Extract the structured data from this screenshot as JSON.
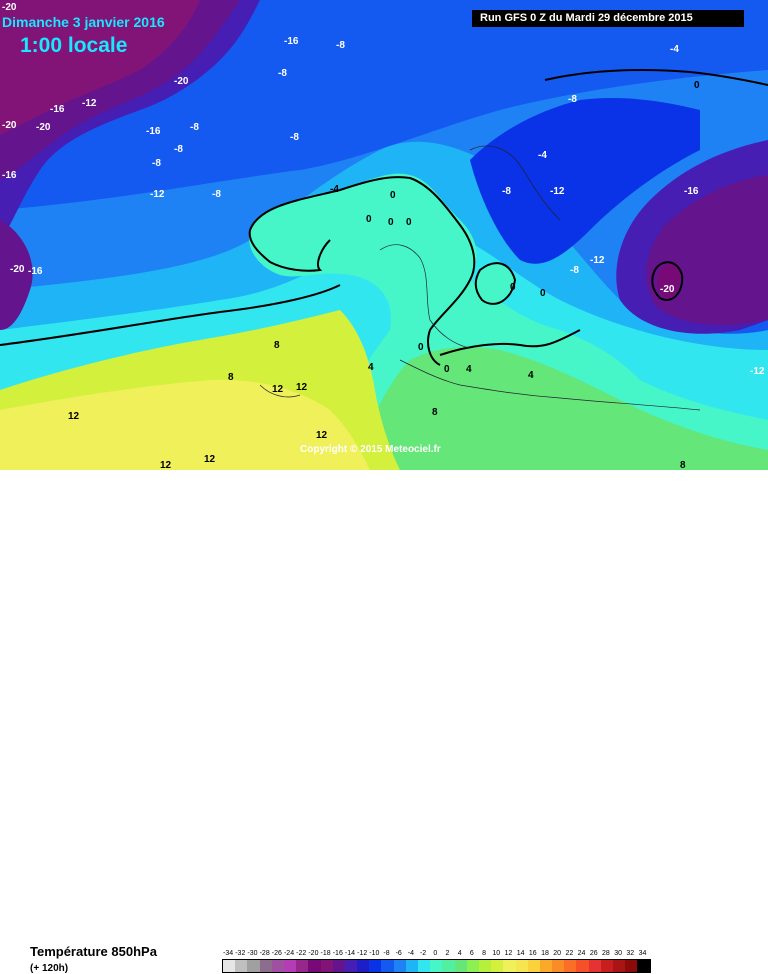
{
  "header": {
    "date": "Dimanche 3 janvier 2016",
    "time": "1:00 locale",
    "run": "Run GFS 0 Z du Mardi 29 décembre 2015"
  },
  "map": {
    "copyright": "Copyright © 2015 Meteociel.fr",
    "labels": [
      {
        "text": "-20"
      },
      {
        "text": "-16"
      },
      {
        "text": "-8"
      },
      {
        "text": "-8"
      },
      {
        "text": "-20"
      },
      {
        "text": "-16"
      },
      {
        "text": "-12"
      },
      {
        "text": "-20"
      },
      {
        "text": "-20"
      },
      {
        "text": "-16"
      },
      {
        "text": "-8"
      },
      {
        "text": "-8"
      },
      {
        "text": "-8"
      },
      {
        "text": "-8"
      },
      {
        "text": "-16"
      },
      {
        "text": "-12"
      },
      {
        "text": "-8"
      },
      {
        "text": "-4"
      },
      {
        "text": "0"
      },
      {
        "text": "0"
      },
      {
        "text": "0"
      },
      {
        "text": "-20"
      },
      {
        "text": "-16"
      },
      {
        "text": "-4"
      },
      {
        "text": "0"
      },
      {
        "text": "-8"
      },
      {
        "text": "-4"
      },
      {
        "text": "-8"
      },
      {
        "text": "-12"
      },
      {
        "text": "-16"
      },
      {
        "text": "-12"
      },
      {
        "text": "-8"
      },
      {
        "text": "-20"
      },
      {
        "text": "-12"
      },
      {
        "text": "0"
      },
      {
        "text": "0"
      },
      {
        "text": "0"
      },
      {
        "text": "0"
      },
      {
        "text": "4"
      },
      {
        "text": "4"
      },
      {
        "text": "4"
      },
      {
        "text": "8"
      },
      {
        "text": "8"
      },
      {
        "text": "8"
      },
      {
        "text": "12"
      },
      {
        "text": "12"
      },
      {
        "text": "12"
      },
      {
        "text": "12"
      },
      {
        "text": "12"
      },
      {
        "text": "12"
      },
      {
        "text": "8"
      },
      {
        "text": "0"
      }
    ]
  },
  "legend": {
    "parameter": "Température 850hPa",
    "offset": "(+ 120h)",
    "scale_values": [
      "-34",
      "-32",
      "-30",
      "-28",
      "-26",
      "-24",
      "-22",
      "-20",
      "-18",
      "-16",
      "-14",
      "-12",
      "-10",
      "-8",
      "-6",
      "-4",
      "-2",
      "0",
      "2",
      "4",
      "6",
      "8",
      "10",
      "12",
      "14",
      "16",
      "18",
      "20",
      "22",
      "24",
      "26",
      "28",
      "30",
      "32",
      "34"
    ],
    "scale_colors": [
      "#e6e6e6",
      "#bfbfbf",
      "#a0a0a0",
      "#8c6e8c",
      "#a050a0",
      "#b43cb4",
      "#96288c",
      "#780a78",
      "#821478",
      "#64148c",
      "#461eb4",
      "#1e1ec8",
      "#0a32e6",
      "#145af0",
      "#1e82f5",
      "#1eb4f5",
      "#32e6f0",
      "#46f5c8",
      "#50f0a0",
      "#64e678",
      "#8cf050",
      "#b4f03c",
      "#d2f03c",
      "#f0f05a",
      "#f5e650",
      "#fad23c",
      "#faaa28",
      "#fa8c28",
      "#fa6e28",
      "#f55028",
      "#e63232",
      "#c81e1e",
      "#aa1414",
      "#8c0a0a",
      "#000000"
    ]
  }
}
